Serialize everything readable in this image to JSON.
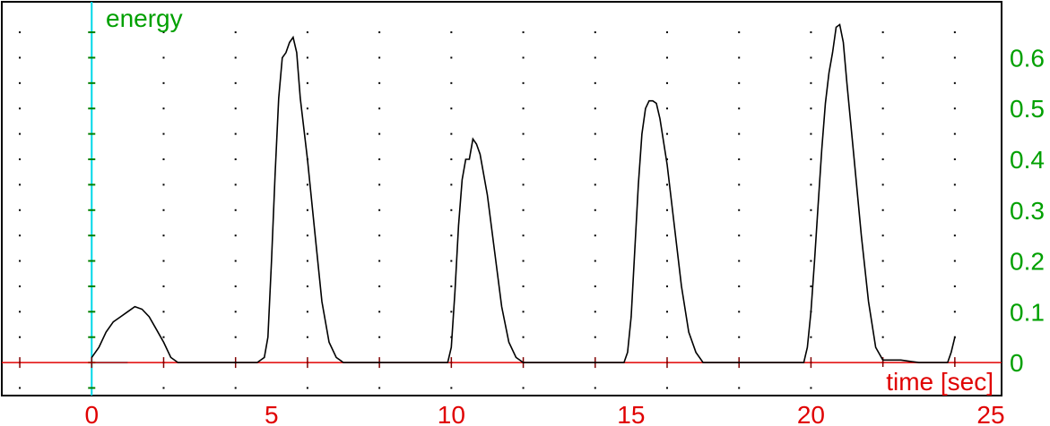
{
  "chart_data": {
    "type": "line",
    "xlabel": "time [sec]",
    "ylabel": "energy",
    "xlim": [
      -2.5,
      25.3
    ],
    "ylim": [
      -0.065,
      0.71
    ],
    "x_ticks": [
      "0",
      "5",
      "10",
      "15",
      "20",
      "25"
    ],
    "y_ticks": [
      "0",
      "0.1",
      "0.2",
      "0.3",
      "0.4",
      "0.5",
      "0.6"
    ],
    "grid": "dotted",
    "colors": {
      "line": "#000000",
      "x_axis": "#e00000",
      "y_axis": "#00d8e8",
      "x_text": "#e00000",
      "y_text": "#00a000",
      "frame": "#000000"
    },
    "series": [
      {
        "x": [
          0,
          0.2,
          0.4,
          0.6,
          0.8,
          1.0,
          1.2,
          1.4,
          1.6,
          1.8,
          2.0,
          2.2,
          2.4,
          3.0,
          4.0,
          4.6,
          4.8,
          4.9,
          5.0,
          5.1,
          5.2,
          5.3,
          5.4,
          5.5,
          5.6,
          5.7,
          5.8,
          6.0,
          6.2,
          6.4,
          6.6,
          6.8,
          7.0,
          8.0,
          9.0,
          9.9,
          10.0,
          10.1,
          10.2,
          10.3,
          10.4,
          10.5,
          10.6,
          10.7,
          10.8,
          11.0,
          11.2,
          11.4,
          11.6,
          11.8,
          12.0,
          12.5,
          13.0,
          14.0,
          14.8,
          14.9,
          15.0,
          15.1,
          15.2,
          15.3,
          15.4,
          15.5,
          15.6,
          15.7,
          15.8,
          16.0,
          16.2,
          16.4,
          16.6,
          16.8,
          17.0,
          18.0,
          19.0,
          19.8,
          19.9,
          20.0,
          20.1,
          20.2,
          20.3,
          20.4,
          20.5,
          20.6,
          20.7,
          20.8,
          20.9,
          21.0,
          21.2,
          21.4,
          21.6,
          21.8,
          22.0,
          22.5,
          23.0,
          23.8,
          23.9,
          24.0
        ],
        "y": [
          0.01,
          0.03,
          0.06,
          0.08,
          0.09,
          0.1,
          0.11,
          0.105,
          0.09,
          0.065,
          0.04,
          0.01,
          0.0,
          0.0,
          0.0,
          0.0,
          0.01,
          0.05,
          0.2,
          0.37,
          0.52,
          0.6,
          0.61,
          0.63,
          0.64,
          0.61,
          0.52,
          0.4,
          0.26,
          0.12,
          0.04,
          0.01,
          0.0,
          0.0,
          0.0,
          0.0,
          0.03,
          0.14,
          0.27,
          0.36,
          0.4,
          0.4,
          0.44,
          0.43,
          0.41,
          0.33,
          0.22,
          0.11,
          0.04,
          0.01,
          0.0,
          0.0,
          0.0,
          0.0,
          0.0,
          0.02,
          0.09,
          0.22,
          0.35,
          0.45,
          0.5,
          0.515,
          0.515,
          0.51,
          0.48,
          0.39,
          0.27,
          0.15,
          0.06,
          0.02,
          0.0,
          0.0,
          0.0,
          0.0,
          0.03,
          0.1,
          0.2,
          0.31,
          0.42,
          0.51,
          0.57,
          0.61,
          0.66,
          0.665,
          0.63,
          0.55,
          0.4,
          0.25,
          0.12,
          0.03,
          0.005,
          0.005,
          0.0,
          0.0,
          0.02,
          0.05
        ]
      }
    ]
  }
}
